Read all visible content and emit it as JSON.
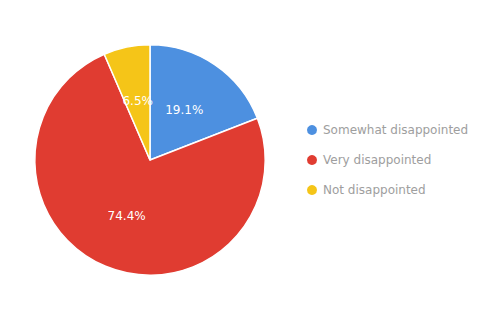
{
  "chart_data": {
    "type": "pie",
    "categories": [
      "Somewhat disappointed",
      "Very disappointed",
      "Not disappointed"
    ],
    "values": [
      19.1,
      74.4,
      6.5
    ],
    "value_labels": [
      "19.1%",
      "74.4%",
      "6.5%"
    ],
    "colors": [
      "#4d90e0",
      "#e03c31",
      "#f5c518"
    ],
    "data_labels": true,
    "legend": "right"
  }
}
